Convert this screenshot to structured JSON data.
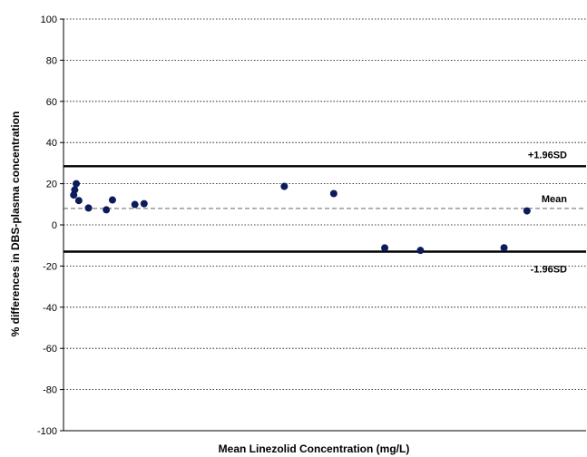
{
  "chart_data": {
    "type": "scatter",
    "xlabel": "Mean Linezolid Concentration (mg/L)",
    "ylabel": "% differences in DBS-plasma concentration",
    "ylim": [
      -100,
      100
    ],
    "xlim": [
      0,
      100
    ],
    "yticks": [
      "100",
      "80",
      "60",
      "40",
      "20",
      "0",
      "-20",
      "-40",
      "-60",
      "-80",
      "-100"
    ],
    "grid": "horizontal dotted",
    "reference_lines": [
      {
        "label": "+1.96SD",
        "y": 28.5,
        "style": "solid-thick"
      },
      {
        "label": "Mean",
        "y": 8.0,
        "style": "dashed"
      },
      {
        "label": "-1.96SD",
        "y": -13.0,
        "style": "solid-thick"
      }
    ],
    "points": [
      {
        "x": 2.0,
        "y": 14.5
      },
      {
        "x": 2.2,
        "y": 17.0
      },
      {
        "x": 2.5,
        "y": 20.0
      },
      {
        "x": 3.0,
        "y": 11.8
      },
      {
        "x": 4.9,
        "y": 8.2
      },
      {
        "x": 8.4,
        "y": 7.3
      },
      {
        "x": 9.6,
        "y": 12.1
      },
      {
        "x": 14.0,
        "y": 9.9
      },
      {
        "x": 15.8,
        "y": 10.3
      },
      {
        "x": 43.3,
        "y": 18.7
      },
      {
        "x": 53.0,
        "y": 15.2
      },
      {
        "x": 63.0,
        "y": -11.2
      },
      {
        "x": 70.0,
        "y": -12.4
      },
      {
        "x": 86.4,
        "y": -11.1
      },
      {
        "x": 90.9,
        "y": 6.8
      }
    ]
  }
}
